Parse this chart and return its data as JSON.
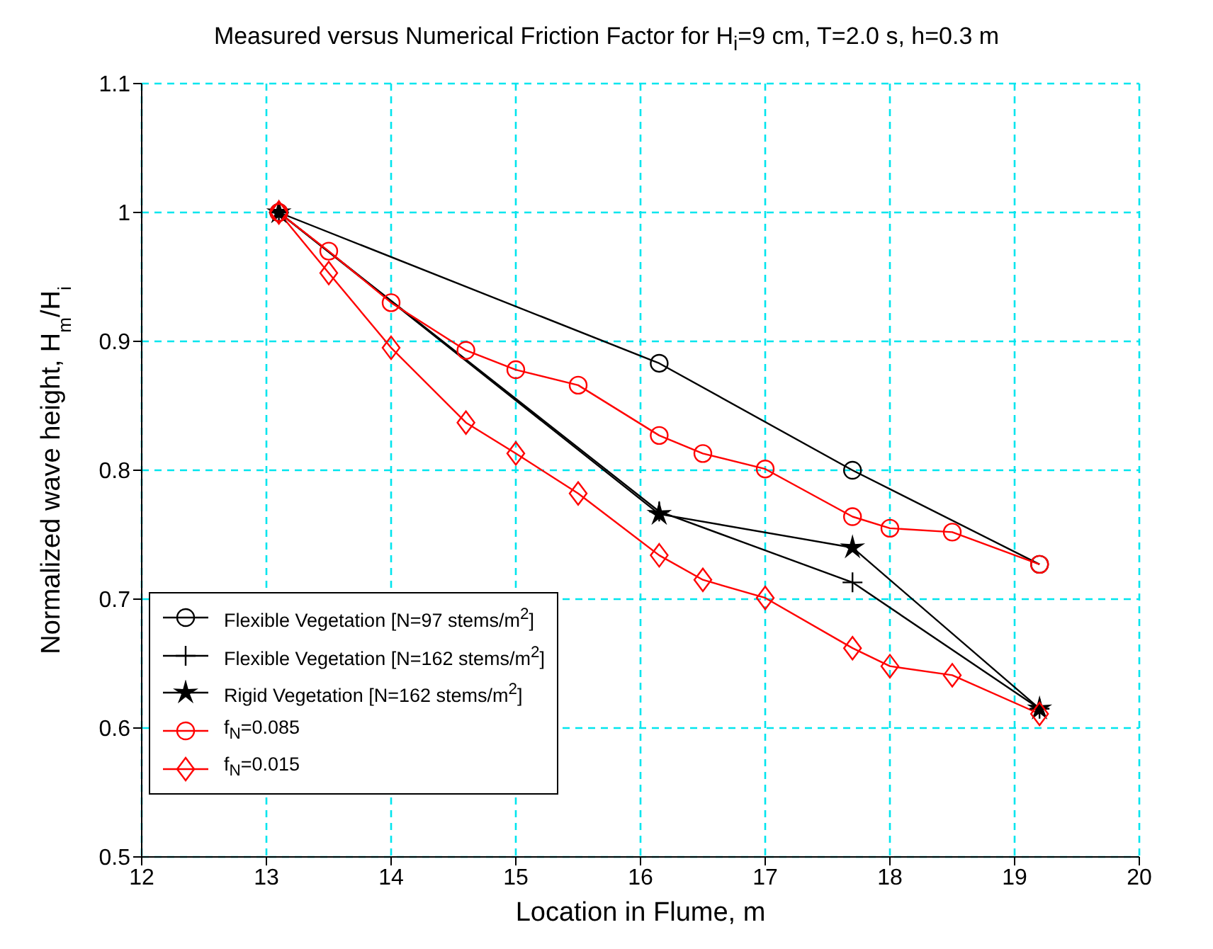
{
  "chart_data": {
    "type": "line",
    "title": "Measured versus Numerical Friction Factor for H$_{i}$=9 cm, T=2.0 s, h=0.3 m",
    "xlabel": "Location in Flume, m",
    "ylabel": "Normalized wave height, H$_{m}$/H$_{i}$",
    "xlim": [
      12,
      20
    ],
    "xticks": [
      12,
      13,
      14,
      15,
      16,
      17,
      18,
      19,
      20
    ],
    "ylim": [
      0.5,
      1.1
    ],
    "yticks": [
      0.5,
      0.6,
      0.7,
      0.8,
      0.9,
      1,
      1.1
    ],
    "grid": true,
    "legend": "bottom left",
    "line_style": "solid",
    "series": [
      {
        "name": "Flexible Vegetation [N=97 stems/m$^{2}$]",
        "color": "#000000",
        "marker": "circle",
        "x": [
          13.1,
          16.15,
          17.7,
          19.2
        ],
        "values": [
          1.0,
          0.883,
          0.8,
          0.727
        ]
      },
      {
        "name": "Flexible Vegetation [N=162 stems/m$^{2}$]",
        "color": "#000000",
        "marker": "cross",
        "x": [
          13.1,
          16.15,
          17.7,
          19.2
        ],
        "values": [
          1.0,
          0.768,
          0.713,
          0.615
        ]
      },
      {
        "name": "Rigid Vegetation [N=162 stems/m$^{2}$]",
        "color": "#000000",
        "marker": "star",
        "x": [
          13.1,
          16.15,
          17.7,
          19.2
        ],
        "values": [
          1.0,
          0.766,
          0.74,
          0.615
        ]
      },
      {
        "name": "f$_{N}$=0.085",
        "color": "#ff0000",
        "marker": "circle",
        "x": [
          13.1,
          13.5,
          14,
          14.6,
          15,
          15.5,
          16.15,
          16.5,
          17,
          17.7,
          18,
          18.5,
          19.2
        ],
        "values": [
          1.0,
          0.97,
          0.93,
          0.893,
          0.878,
          0.866,
          0.827,
          0.813,
          0.801,
          0.764,
          0.755,
          0.752,
          0.727
        ]
      },
      {
        "name": "f$_{N}$=0.015",
        "color": "#ff0000",
        "marker": "diamond",
        "x": [
          13.1,
          13.5,
          14,
          14.6,
          15,
          15.5,
          16.15,
          16.5,
          17,
          17.7,
          18,
          18.5,
          19.2
        ],
        "values": [
          1.0,
          0.953,
          0.895,
          0.837,
          0.813,
          0.782,
          0.734,
          0.715,
          0.701,
          0.662,
          0.648,
          0.641,
          0.611
        ]
      }
    ]
  }
}
